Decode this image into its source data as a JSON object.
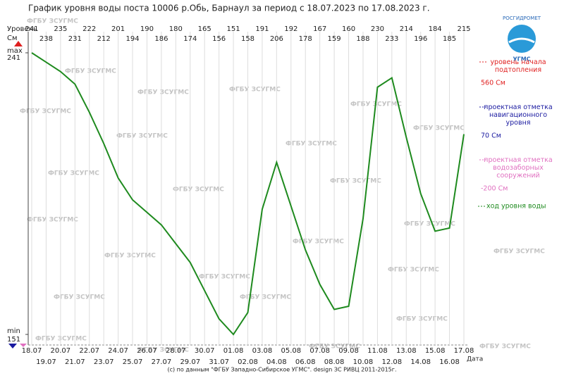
{
  "chart_data": {
    "type": "line",
    "title": "График уровня воды поста 10006 р.Обь, Барнаул за период с 18.07.2023 по 17.08.2023 г.",
    "y_label": "Уровень",
    "y_unit": "См",
    "x_label": "Дата",
    "max_label": "max",
    "min_label": "min",
    "categories": [
      "18.07",
      "19.07",
      "20.07",
      "21.07",
      "22.07",
      "23.07",
      "24.07",
      "25.07",
      "26.07",
      "27.07",
      "28.07",
      "29.07",
      "30.07",
      "31.07",
      "01.08",
      "02.08",
      "03.08",
      "04.08",
      "05.08",
      "06.08",
      "07.08",
      "08.08",
      "09.08",
      "10.08",
      "11.08",
      "12.08",
      "13.08",
      "14.08",
      "15.08",
      "16.08",
      "17.08"
    ],
    "series": [
      {
        "name": "ход уровня воды",
        "color": "#1e8a1e",
        "values": [
          241,
          238,
          235,
          231,
          222,
          212,
          201,
          194,
          190,
          186,
          180,
          174,
          165,
          156,
          151,
          158,
          191,
          206,
          192,
          178,
          167,
          159,
          160,
          188,
          230,
          233,
          214,
          196,
          184,
          185,
          215
        ]
      }
    ],
    "ylim": [
      151,
      241
    ],
    "yticks": [
      151,
      241
    ],
    "grid": true,
    "reference_levels": [
      {
        "name": "уровень начала подтопления",
        "level": "560 См",
        "color": "#e02020"
      },
      {
        "name": "проектная отметка навигационного уровня",
        "level": "70 См",
        "color": "#1a1aa0"
      },
      {
        "name": "проектная отметка водозаборных сооружений",
        "level": "-200 См",
        "color": "#e070c0"
      }
    ],
    "watermark": "ФГБУ ЗСУГМС",
    "logo_text": "РОСГИДРОМЕТ",
    "logo_sub": "УГМС",
    "footer": "(c) по данным \"ФГБУ Западно-Сибирское УГМС\". design ЗС РИВЦ 2011-2015г."
  }
}
